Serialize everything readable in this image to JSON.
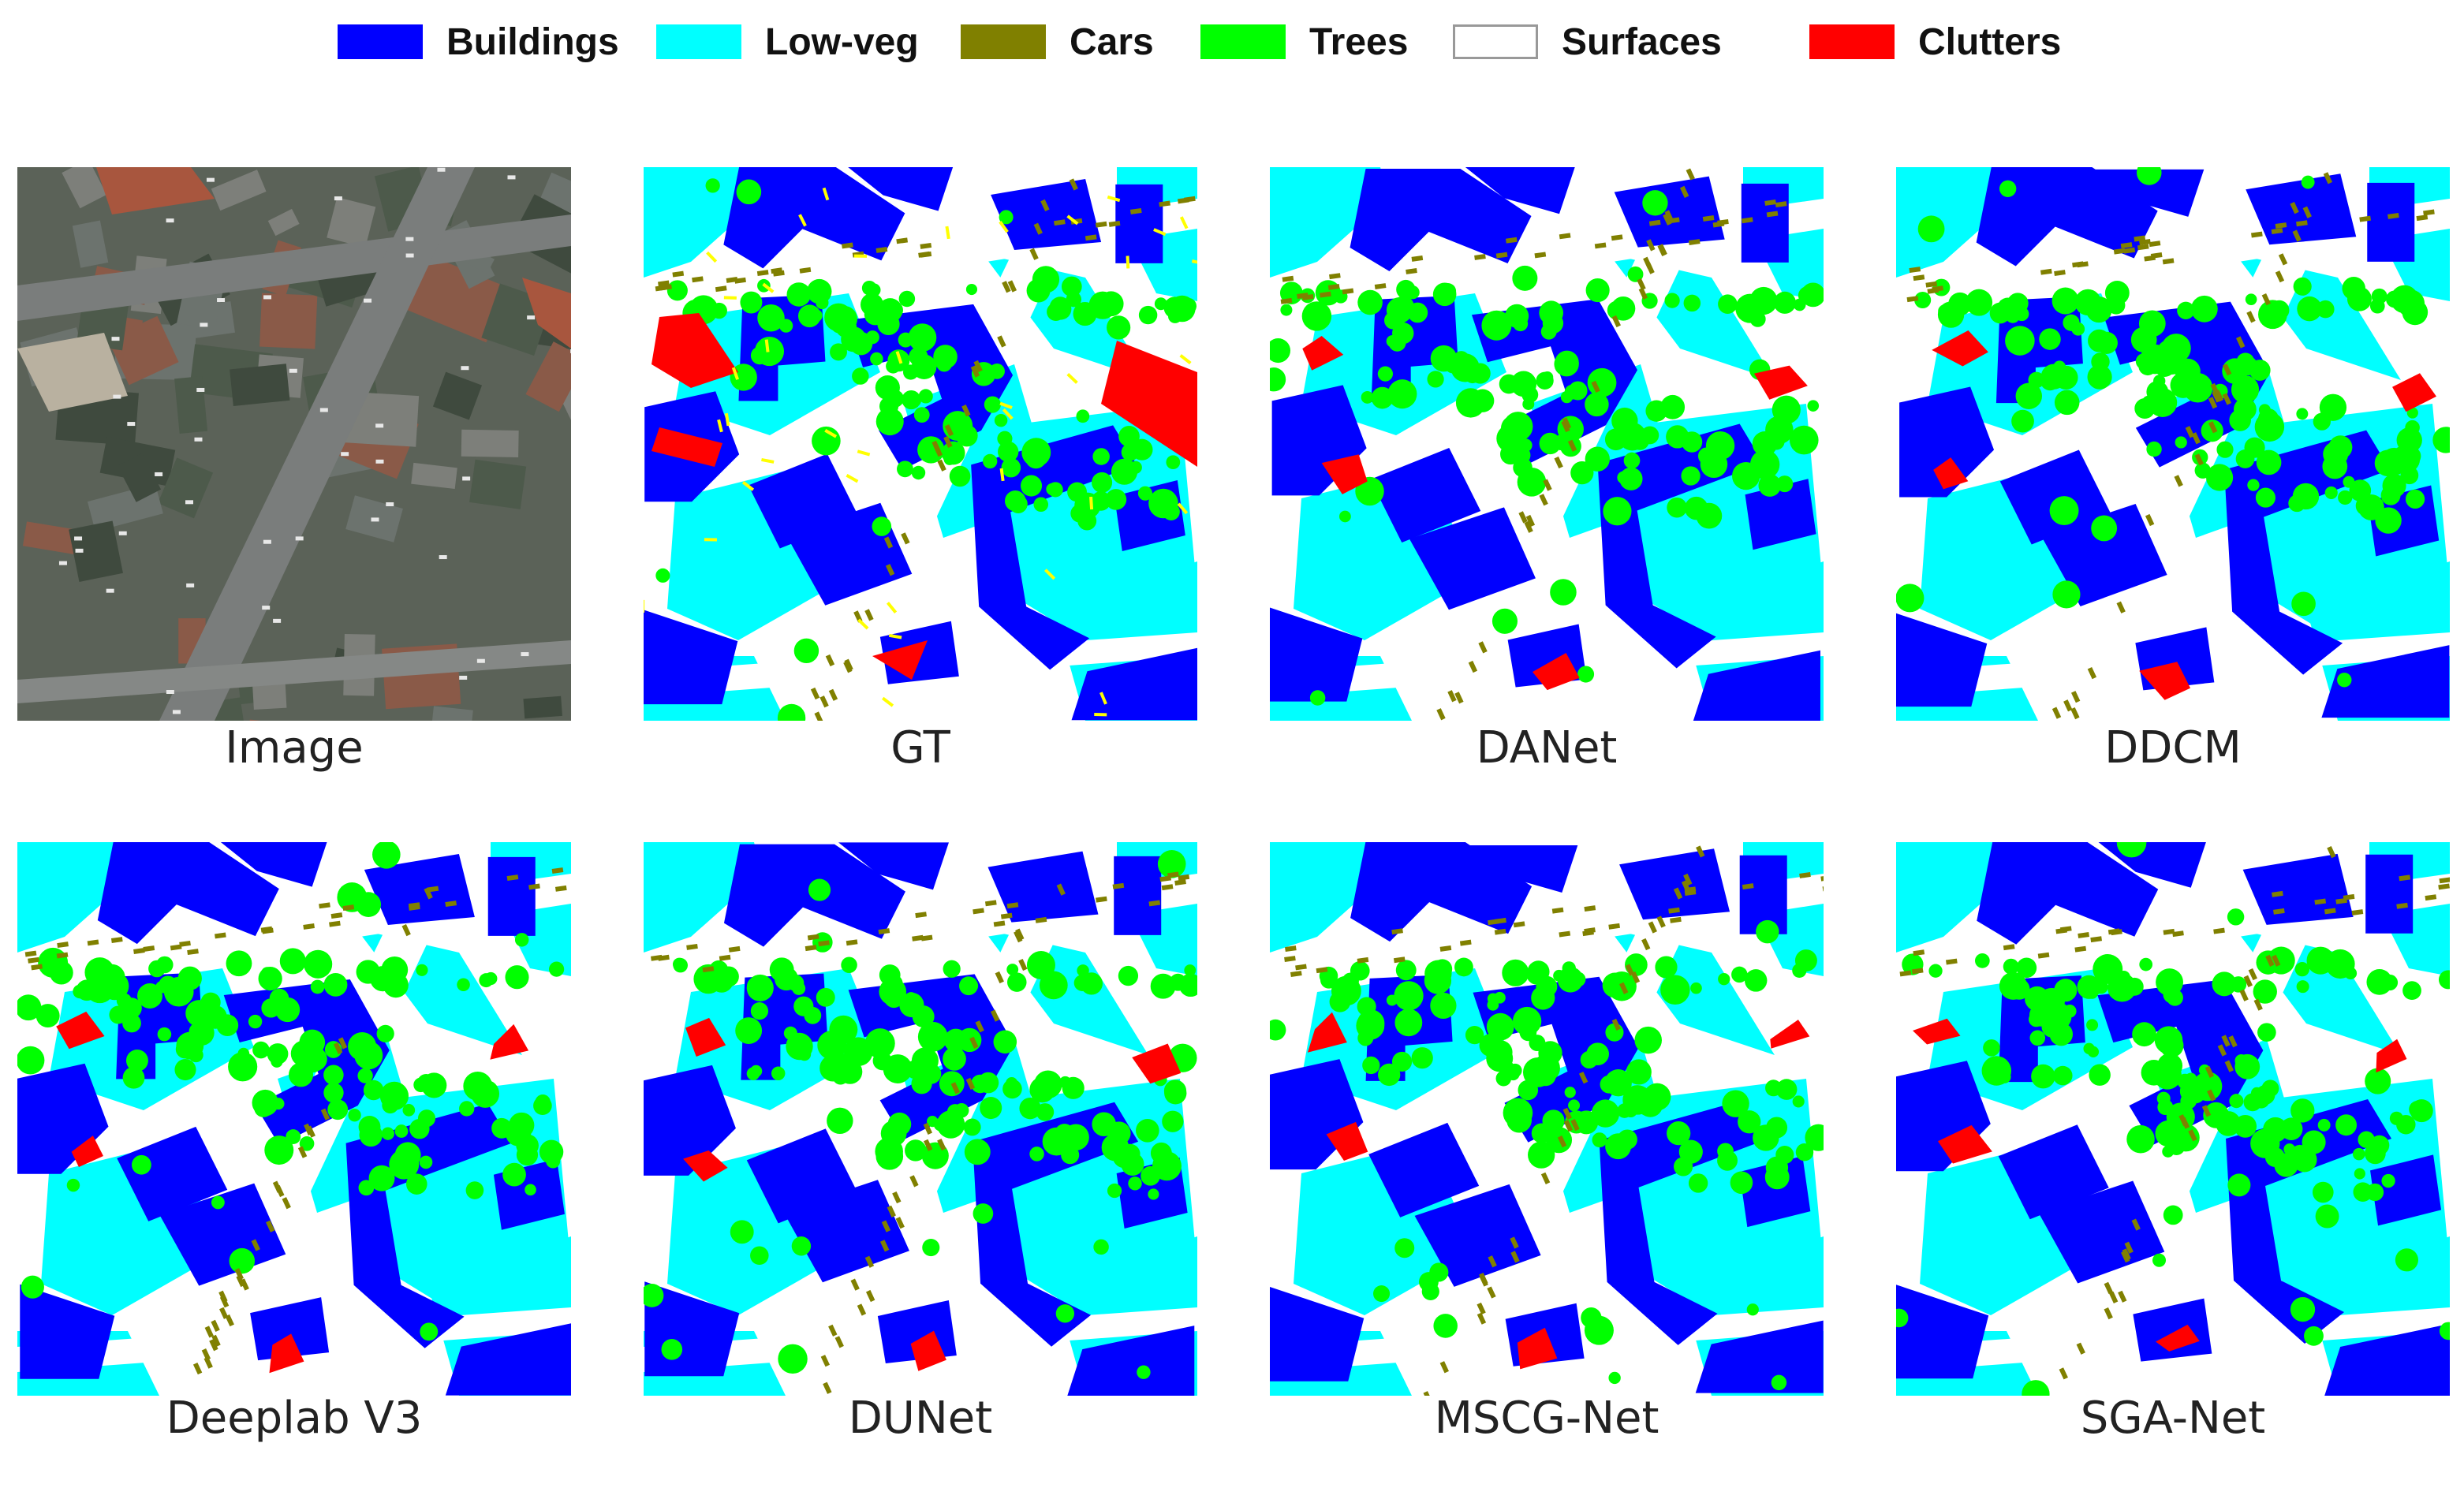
{
  "legend": [
    {
      "label": "Buildings",
      "color": "#0000ff"
    },
    {
      "label": "Low-veg",
      "color": "#00ffff"
    },
    {
      "label": "Cars",
      "color": "#808000"
    },
    {
      "label": "Trees",
      "color": "#00ff00"
    },
    {
      "label": "Surfaces",
      "color": "#ffffff"
    },
    {
      "label": "Clutters",
      "color": "#ff0000"
    }
  ],
  "panels": [
    {
      "caption": "Image",
      "kind": "aerial-photo"
    },
    {
      "caption": "GT",
      "kind": "segmentation"
    },
    {
      "caption": "DANet",
      "kind": "segmentation"
    },
    {
      "caption": "DDCM",
      "kind": "segmentation"
    },
    {
      "caption": "Deeplab V3",
      "kind": "segmentation"
    },
    {
      "caption": "DUNet",
      "kind": "segmentation"
    },
    {
      "caption": "MSCG-Net",
      "kind": "segmentation"
    },
    {
      "caption": "SGA-Net",
      "kind": "segmentation"
    }
  ]
}
